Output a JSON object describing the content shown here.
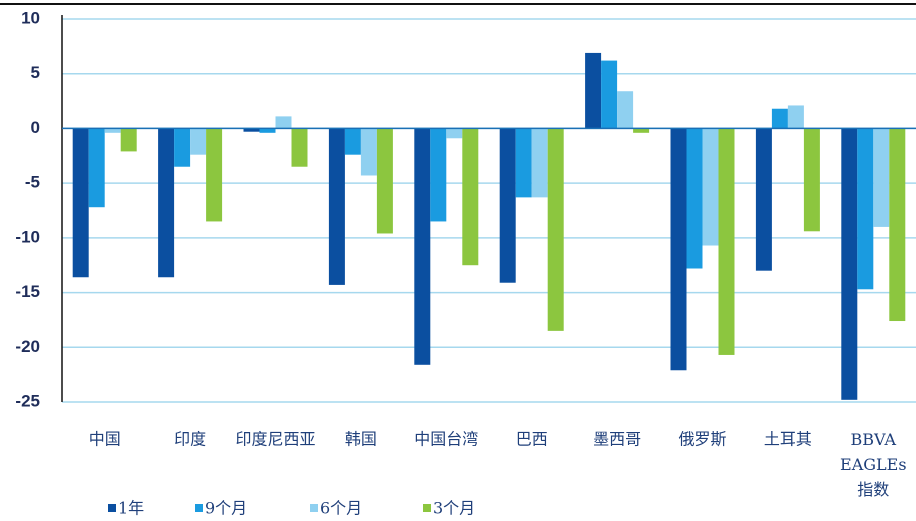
{
  "chart_data": {
    "type": "bar",
    "categories": [
      "中国",
      "印度",
      "印度尼西亚",
      "韩国",
      "中国台湾",
      "巴西",
      "墨西哥",
      "俄罗斯",
      "土耳其",
      "BBVA EAGLEs 指数"
    ],
    "series": [
      {
        "name": "1年",
        "color": "#0b4fa0",
        "values": [
          -13.6,
          -13.6,
          -0.3,
          -14.3,
          -21.6,
          -14.1,
          6.9,
          -22.1,
          -13.0,
          -24.8
        ]
      },
      {
        "name": "9个月",
        "color": "#1a9be0",
        "values": [
          -7.2,
          -3.5,
          -0.4,
          -2.4,
          -8.5,
          -6.3,
          6.2,
          -12.8,
          1.8,
          -14.7
        ]
      },
      {
        "name": "6个月",
        "color": "#8fd0f0",
        "values": [
          -0.4,
          -2.4,
          1.1,
          -4.3,
          -0.9,
          -6.3,
          3.4,
          -10.7,
          2.1,
          -9.0
        ]
      },
      {
        "name": "3个月",
        "color": "#8cc63f",
        "values": [
          -2.1,
          -8.5,
          -3.5,
          -9.6,
          -12.5,
          -18.5,
          -0.4,
          -20.7,
          -9.4,
          -17.6
        ]
      }
    ],
    "ylim": [
      -25,
      10
    ],
    "yticks": [
      10,
      5,
      0,
      -5,
      -10,
      -15,
      -20,
      -25
    ],
    "grid": true,
    "legend": "bottom"
  }
}
